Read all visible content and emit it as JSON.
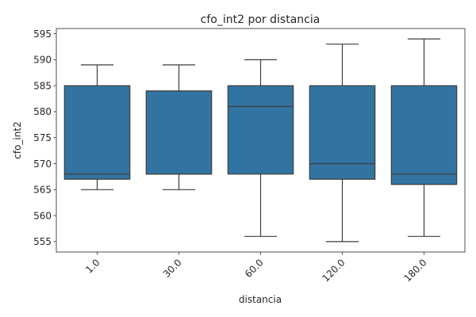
{
  "chart_data": {
    "type": "box",
    "title": "cfo_int2 por distancia",
    "xlabel": "distancia",
    "ylabel": "cfo_int2",
    "ylim": [
      553,
      596
    ],
    "yticks": [
      555,
      560,
      565,
      570,
      575,
      580,
      585,
      590,
      595
    ],
    "categories": [
      "1.0",
      "30.0",
      "60.0",
      "120.0",
      "180.0"
    ],
    "boxes": [
      {
        "whisker_low": 565,
        "q1": 567,
        "median": 568,
        "q3": 585,
        "whisker_high": 589
      },
      {
        "whisker_low": 565,
        "q1": 568,
        "median": 568,
        "q3": 584,
        "whisker_high": 589
      },
      {
        "whisker_low": 556,
        "q1": 568,
        "median": 581,
        "q3": 585,
        "whisker_high": 590
      },
      {
        "whisker_low": 555,
        "q1": 567,
        "median": 570,
        "q3": 585,
        "whisker_high": 593
      },
      {
        "whisker_low": 556,
        "q1": 566,
        "median": 568,
        "q3": 585,
        "whisker_high": 594
      }
    ],
    "box_color": "#3274a1",
    "line_color": "#3d3d3d",
    "grid": false,
    "legend": "none"
  }
}
